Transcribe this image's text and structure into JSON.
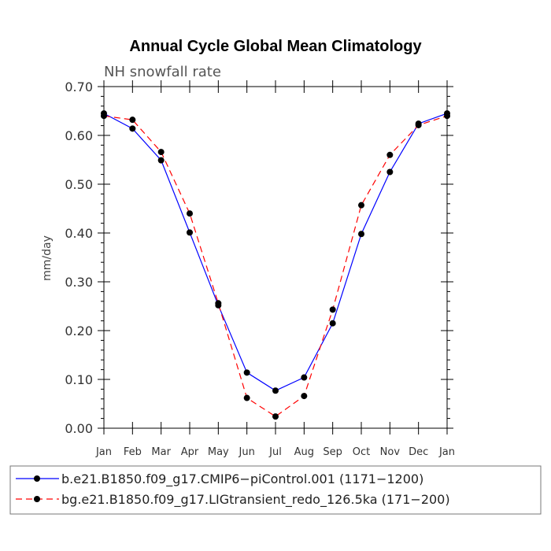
{
  "chart_data": {
    "type": "line",
    "title": "Annual Cycle Global Mean Climatology",
    "subtitle": "NH snowfall rate",
    "xlabel": "",
    "ylabel": "mm/day",
    "ylim": [
      0.0,
      0.7
    ],
    "yticks": [
      "0.00",
      "0.10",
      "0.20",
      "0.30",
      "0.40",
      "0.50",
      "0.60",
      "0.70"
    ],
    "categories": [
      "Jan",
      "Feb",
      "Mar",
      "Apr",
      "May",
      "Jun",
      "Jul",
      "Aug",
      "Sep",
      "Oct",
      "Nov",
      "Dec",
      "Jan"
    ],
    "series": [
      {
        "name": "b.e21.B1850.f09_g17.CMIP6−piControl.001 (1171−1200)",
        "color": "#0000ff",
        "dash": "solid",
        "values": [
          0.645,
          0.614,
          0.549,
          0.401,
          0.252,
          0.114,
          0.077,
          0.104,
          0.215,
          0.398,
          0.525,
          0.624,
          0.645
        ]
      },
      {
        "name": "bg.e21.B1850.f09_g17.LIGtransient_redo_126.5ka (171−200)",
        "color": "#ff0000",
        "dash": "dashed",
        "values": [
          0.64,
          0.632,
          0.566,
          0.44,
          0.256,
          0.062,
          0.024,
          0.066,
          0.243,
          0.457,
          0.56,
          0.621,
          0.64
        ]
      }
    ],
    "legend_position": "bottom"
  }
}
